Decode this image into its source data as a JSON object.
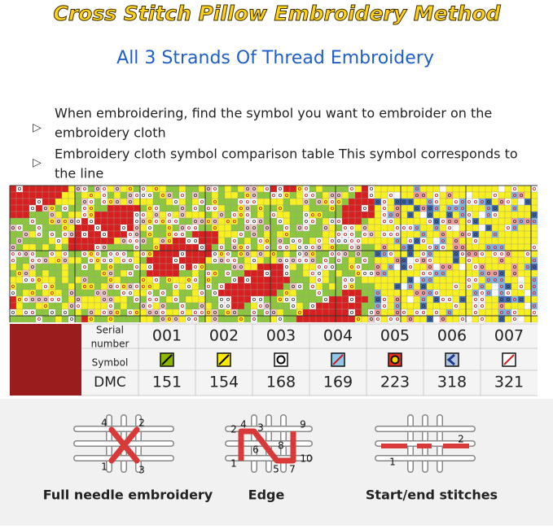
{
  "header": {
    "title": "Cross Stitch Pillow Embroidery Method",
    "subtitle": "All 3 Strands Of Thread Embroidery"
  },
  "bullets": [
    "When embroidering, find the symbol you want to embroider on the",
    "embroidery cloth",
    "Embroidery cloth symbol comparison table This symbol corresponds to",
    "the line"
  ],
  "table": {
    "row_labels": [
      "Serial",
      "number",
      "Symbol",
      "DMC"
    ],
    "serials": [
      "001",
      "002",
      "003",
      "004",
      "005",
      "006",
      "007"
    ],
    "dmc": [
      151,
      154,
      168,
      169,
      223,
      318,
      321
    ]
  },
  "diagrams": [
    {
      "label": "Full needle embroidery",
      "numbers": [
        "4",
        "2",
        "1",
        "3"
      ]
    },
    {
      "label": "Edge",
      "numbers": [
        "2",
        "4",
        "3",
        "9",
        "6",
        "8",
        "1",
        "5",
        "7",
        "10"
      ]
    },
    {
      "label": "Start/end stitches",
      "numbers": [
        "1",
        "2"
      ]
    }
  ]
}
